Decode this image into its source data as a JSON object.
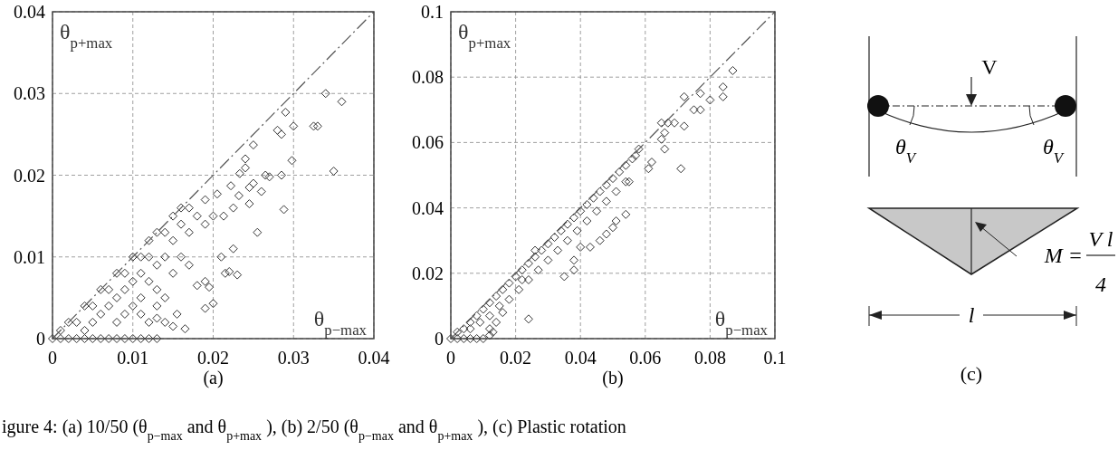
{
  "chart_data": [
    {
      "type": "scatter",
      "xlabel": "θ$_{p−max}$",
      "ylabel": "θ$_{p+max}$",
      "xlim": [
        0,
        0.04
      ],
      "ylim": [
        0,
        0.04
      ],
      "xticks": [
        0,
        0.01,
        0.02,
        0.03,
        0.04
      ],
      "yticks": [
        0,
        0.01,
        0.02,
        0.03,
        0.04
      ],
      "grid": true,
      "annotations": [
        "(a)"
      ],
      "series": [
        {
          "type": "scatter",
          "color": "#333333",
          "marker": "diamond",
          "x": [
            0.034,
            0.036,
            0.029,
            0.03,
            0.033,
            0.0325,
            0.028,
            0.0285,
            0.025,
            0.024,
            0.0298,
            0.035,
            0.024,
            0.0233,
            0.0265,
            0.0285,
            0.027,
            0.025,
            0.0222,
            0.0245,
            0.026,
            0.0288,
            0.0255,
            0.0205,
            0.019,
            0.0225,
            0.0232,
            0.0245,
            0.0213,
            0.0225,
            0.021,
            0.0215,
            0.022,
            0.023,
            0.019,
            0.018,
            0.0195,
            0.02,
            0.019,
            0.0165,
            0.015,
            0.014,
            0.0155,
            0.013,
            0.017,
            0.016,
            0.015,
            0.014,
            0.013,
            0.012,
            0.011,
            0.01,
            0.009,
            0.008,
            0.007,
            0.006,
            0.005,
            0.004,
            0.003,
            0.002,
            0.001,
            0.016,
            0.015,
            0.017,
            0.018,
            0.019,
            0.02,
            0.014,
            0.013,
            0.012,
            0.011,
            0.01,
            0.009,
            0.008,
            0.012,
            0.016,
            0.017,
            0.015,
            0.013,
            0.014,
            0.011,
            0.01,
            0.009,
            0.008,
            0.007,
            0.006,
            0.005,
            0.004,
            0.012,
            0.011,
            0.013,
            0,
            0.001,
            0.002,
            0.003,
            0.004,
            0.005,
            0.006,
            0.007,
            0.008,
            0.009,
            0.01,
            0.011,
            0.012,
            0.013
          ],
          "values": [
            0.03,
            0.029,
            0.0277,
            0.026,
            0.026,
            0.026,
            0.0255,
            0.025,
            0.0237,
            0.022,
            0.0218,
            0.0205,
            0.0209,
            0.0202,
            0.02,
            0.02,
            0.0198,
            0.019,
            0.0187,
            0.0185,
            0.018,
            0.0158,
            0.013,
            0.0177,
            0.017,
            0.016,
            0.0175,
            0.0165,
            0.015,
            0.011,
            0.01,
            0.008,
            0.0082,
            0.0078,
            0.007,
            0.0065,
            0.0063,
            0.0043,
            0.0037,
            0.0012,
            0.0015,
            0.002,
            0.003,
            0.0025,
            0.016,
            0.016,
            0.015,
            0.013,
            0.013,
            0.012,
            0.01,
            0.01,
            0.008,
            0.008,
            0.006,
            0.006,
            0.004,
            0.004,
            0.002,
            0.002,
            0.001,
            0.014,
            0.012,
            0.013,
            0.015,
            0.014,
            0.015,
            0.01,
            0.009,
            0.007,
            0.005,
            0.004,
            0.003,
            0.002,
            0.01,
            0.01,
            0.009,
            0.008,
            0.006,
            0.005,
            0.008,
            0.007,
            0.006,
            0.005,
            0.004,
            0.003,
            0.002,
            0.001,
            0.002,
            0.003,
            0.004,
            0,
            0,
            0,
            0,
            0,
            0,
            0,
            0,
            0,
            0,
            0,
            0,
            0,
            0
          ]
        },
        {
          "type": "line",
          "color": "#555555",
          "line_style": "dashed",
          "marker": "none",
          "x": [
            0,
            0.04
          ],
          "values": [
            0,
            0.04
          ]
        }
      ]
    },
    {
      "type": "scatter",
      "xlabel": "θ$_{p−max}$",
      "ylabel": "θ$_{p+max}$",
      "xlim": [
        0,
        0.1
      ],
      "ylim": [
        0,
        0.1
      ],
      "xticks": [
        0,
        0.02,
        0.04,
        0.06,
        0.08,
        0.1
      ],
      "yticks": [
        0,
        0.02,
        0.04,
        0.06,
        0.08,
        0.1
      ],
      "grid": true,
      "annotations": [
        "(b)"
      ],
      "series": [
        {
          "type": "scatter",
          "color": "#333333",
          "marker": "diamond",
          "x": [
            0.087,
            0.084,
            0.084,
            0.08,
            0.077,
            0.072,
            0.075,
            0.077,
            0.072,
            0.069,
            0.067,
            0.065,
            0.066,
            0.065,
            0.066,
            0.071,
            0.061,
            0.062,
            0.058,
            0.057,
            0.055,
            0.054,
            0.051,
            0.05,
            0.048,
            0.046,
            0.043,
            0.04,
            0.038,
            0.038,
            0.035,
            0.024,
            0.002,
            0.004,
            0.006,
            0.008,
            0.01,
            0.012,
            0.014,
            0.016,
            0.018,
            0.02,
            0.022,
            0.024,
            0.026,
            0.028,
            0.03,
            0.032,
            0.034,
            0.036,
            0.038,
            0.04,
            0.042,
            0.044,
            0.046,
            0.048,
            0.05,
            0.052,
            0.054,
            0.056,
            0.006,
            0.009,
            0.012,
            0.015,
            0.018,
            0.021,
            0.024,
            0.027,
            0.03,
            0.033,
            0.036,
            0.039,
            0.042,
            0.045,
            0.048,
            0.051,
            0.054,
            0.012,
            0.014,
            0.016,
            0.026,
            0.022,
            0,
            0.002,
            0.004,
            0.006,
            0.008,
            0.01,
            0.012,
            0.013
          ],
          "values": [
            0.082,
            0.077,
            0.074,
            0.073,
            0.075,
            0.074,
            0.07,
            0.07,
            0.065,
            0.066,
            0.066,
            0.066,
            0.063,
            0.061,
            0.058,
            0.052,
            0.052,
            0.054,
            0.058,
            0.056,
            0.048,
            0.038,
            0.036,
            0.034,
            0.032,
            0.03,
            0.028,
            0.028,
            0.024,
            0.021,
            0.019,
            0.006,
            0.002,
            0.003,
            0.005,
            0.007,
            0.009,
            0.011,
            0.013,
            0.015,
            0.017,
            0.019,
            0.021,
            0.023,
            0.025,
            0.027,
            0.029,
            0.031,
            0.033,
            0.035,
            0.037,
            0.039,
            0.041,
            0.043,
            0.045,
            0.047,
            0.049,
            0.051,
            0.053,
            0.055,
            0.003,
            0.005,
            0.007,
            0.01,
            0.012,
            0.015,
            0.018,
            0.021,
            0.024,
            0.027,
            0.03,
            0.033,
            0.036,
            0.039,
            0.042,
            0.045,
            0.048,
            0.003,
            0.005,
            0.008,
            0.027,
            0.018,
            0,
            0,
            0,
            0,
            0,
            0,
            0.001,
            0.002
          ]
        },
        {
          "type": "line",
          "color": "#555555",
          "line_style": "dashed",
          "marker": "none",
          "x": [
            0,
            0.1
          ],
          "values": [
            0,
            0.1
          ]
        }
      ]
    },
    {
      "type": "other",
      "annotations": [
        "V",
        "θ$_{V}$",
        "θ$_{V}$",
        "M =",
        "V l",
        "4",
        "l",
        "(c)",
        "igure 4: (a) 10/50 (θ$_{p−max}$  and θ$_{p+max}$ ), (b) 2/50 (θ$_{p−max}$  and θ$_{p+max}$ ), (c) Plastic rotation"
      ]
    }
  ]
}
